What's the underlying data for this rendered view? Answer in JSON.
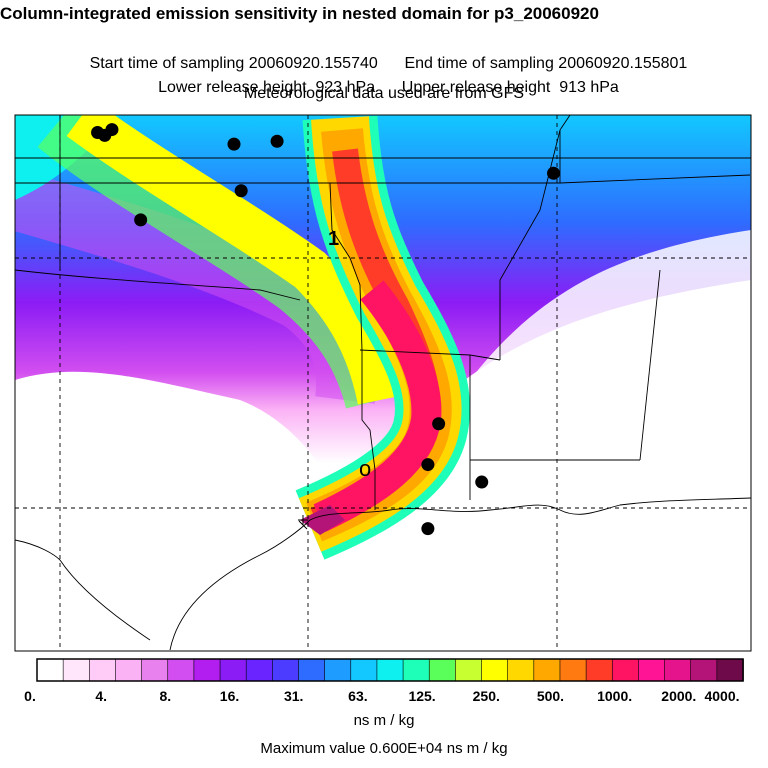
{
  "header": {
    "title": "Column-integrated emission sensitivity in nested domain for p3_20060920",
    "start_label": "Start time of sampling 20060920.155740",
    "end_label": "End time of sampling 20060920.155801",
    "lower_label": "Lower release height  923 hPa",
    "upper_label": "Upper release height  913 hPa",
    "met_label": "Meteorological data used are from GFS"
  },
  "map": {
    "plume_path_label": "1",
    "release_marker": "o",
    "receptor_points": [
      {
        "lon": -103.7,
        "lat": 37.2
      },
      {
        "lon": -103.5,
        "lat": 37.15
      },
      {
        "lon": -103.3,
        "lat": 37.25
      },
      {
        "lon": -99.9,
        "lat": 37.0
      },
      {
        "lon": -98.7,
        "lat": 37.05
      },
      {
        "lon": -99.7,
        "lat": 36.2
      },
      {
        "lon": -102.5,
        "lat": 35.7
      },
      {
        "lon": -91.0,
        "lat": 36.5
      },
      {
        "lon": -94.2,
        "lat": 32.2
      },
      {
        "lon": -94.5,
        "lat": 31.5
      },
      {
        "lon": -93.0,
        "lat": 31.2
      },
      {
        "lon": -94.5,
        "lat": 30.4
      }
    ]
  },
  "colorbar": {
    "colors": [
      "#ffffff",
      "#ffe6fb",
      "#ffccf7",
      "#fbb2f5",
      "#e880ee",
      "#d24ef0",
      "#b21ef0",
      "#8c1cf5",
      "#6a24ff",
      "#4b3cff",
      "#2e6cff",
      "#1e9cff",
      "#12c8ff",
      "#0ef0f0",
      "#1effb8",
      "#5aff5a",
      "#c8ff30",
      "#ffff00",
      "#ffd800",
      "#ffa800",
      "#ff7a10",
      "#ff3c28",
      "#ff1464",
      "#ff1496",
      "#e6148c",
      "#b41478",
      "#6e0a4a"
    ],
    "ticks": [
      "0.",
      "4.",
      "8.",
      "16.",
      "31.",
      "63.",
      "125.",
      "250.",
      "500.",
      "1000.",
      "2000.",
      "4000."
    ],
    "units": "ns m / kg",
    "maximum": "Maximum value  0.600E+04 ns m / kg"
  }
}
